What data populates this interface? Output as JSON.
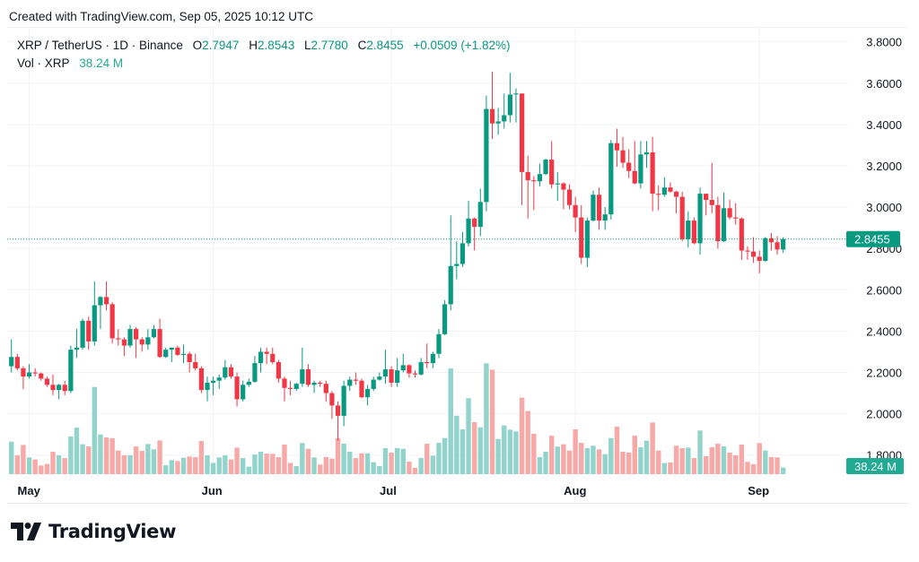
{
  "header": {
    "created": "Created with TradingView.com, Sep 05, 2025 10:12 UTC"
  },
  "legend": {
    "symbol": "XRP / TetherUS · 1D · Binance",
    "open_label": "O",
    "open": "2.7947",
    "high_label": "H",
    "high": "2.8543",
    "low_label": "L",
    "low": "2.7780",
    "close_label": "C",
    "close": "2.8455",
    "change": "+0.0509 (+1.82%)",
    "volume_label": "Vol · XRP",
    "volume": "38.24 M"
  },
  "price_tag": "2.8455",
  "volume_tag": "38.24 M",
  "logo": {
    "text": "TradingView"
  },
  "colors": {
    "up": "#089981",
    "down": "#f23645",
    "volume_up": "#92d3cc",
    "volume_down": "#f7a9a7",
    "grid": "#f2f3f6",
    "price_line": "#089981"
  },
  "chart_data": {
    "type": "candlestick",
    "title": "",
    "y_axis": {
      "ticks": [
        "3.8000",
        "3.6000",
        "3.4000",
        "3.2000",
        "3.0000",
        "2.8000",
        "2.6000",
        "2.4000",
        "2.2000",
        "2.0000",
        "1.8000"
      ],
      "range": [
        1.78,
        3.87
      ],
      "position": "right"
    },
    "x_axis": {
      "ticks": [
        {
          "label": "May",
          "date": "2025-05-01"
        },
        {
          "label": "Jun",
          "date": "2025-06-01"
        },
        {
          "label": "Jul",
          "date": "2025-07-01"
        },
        {
          "label": "Aug",
          "date": "2025-08-01"
        },
        {
          "label": "Sep",
          "date": "2025-09-01"
        }
      ]
    },
    "grid": true,
    "last_price": 2.8455,
    "volume_unit": "M",
    "columns": [
      "date",
      "open",
      "high",
      "low",
      "close",
      "volume"
    ],
    "candles": [
      [
        "2025-04-28",
        2.23,
        2.36,
        2.2,
        2.275,
        190
      ],
      [
        "2025-04-29",
        2.275,
        2.29,
        2.21,
        2.22,
        110
      ],
      [
        "2025-04-30",
        2.22,
        2.23,
        2.12,
        2.18,
        171
      ],
      [
        "2025-05-01",
        2.18,
        2.24,
        2.17,
        2.2,
        98
      ],
      [
        "2025-05-02",
        2.2,
        2.22,
        2.18,
        2.195,
        86
      ],
      [
        "2025-05-03",
        2.195,
        2.2,
        2.16,
        2.17,
        51
      ],
      [
        "2025-05-04",
        2.17,
        2.18,
        2.13,
        2.14,
        59
      ],
      [
        "2025-05-05",
        2.14,
        2.19,
        2.09,
        2.115,
        131
      ],
      [
        "2025-05-06",
        2.115,
        2.145,
        2.07,
        2.14,
        110
      ],
      [
        "2025-05-07",
        2.14,
        2.16,
        2.09,
        2.11,
        94
      ],
      [
        "2025-05-08",
        2.11,
        2.33,
        2.1,
        2.31,
        220
      ],
      [
        "2025-05-09",
        2.31,
        2.41,
        2.27,
        2.32,
        272
      ],
      [
        "2025-05-10",
        2.32,
        2.46,
        2.31,
        2.45,
        175
      ],
      [
        "2025-05-11",
        2.45,
        2.47,
        2.31,
        2.35,
        162
      ],
      [
        "2025-05-12",
        2.35,
        2.64,
        2.33,
        2.525,
        510
      ],
      [
        "2025-05-13",
        2.525,
        2.57,
        2.41,
        2.565,
        232
      ],
      [
        "2025-05-14",
        2.565,
        2.64,
        2.5,
        2.53,
        215
      ],
      [
        "2025-05-15",
        2.53,
        2.54,
        2.34,
        2.365,
        210
      ],
      [
        "2025-05-16",
        2.365,
        2.41,
        2.33,
        2.36,
        138
      ],
      [
        "2025-05-17",
        2.36,
        2.37,
        2.28,
        2.33,
        110
      ],
      [
        "2025-05-18",
        2.33,
        2.43,
        2.32,
        2.41,
        110
      ],
      [
        "2025-05-19",
        2.41,
        2.42,
        2.27,
        2.36,
        162
      ],
      [
        "2025-05-20",
        2.36,
        2.37,
        2.3,
        2.335,
        136
      ],
      [
        "2025-05-21",
        2.335,
        2.41,
        2.31,
        2.37,
        176
      ],
      [
        "2025-05-22",
        2.37,
        2.43,
        2.365,
        2.41,
        145
      ],
      [
        "2025-05-23",
        2.41,
        2.46,
        2.27,
        2.275,
        197
      ],
      [
        "2025-05-24",
        2.275,
        2.32,
        2.27,
        2.31,
        52
      ],
      [
        "2025-05-25",
        2.31,
        2.32,
        2.25,
        2.32,
        82
      ],
      [
        "2025-05-26",
        2.32,
        2.33,
        2.28,
        2.285,
        77
      ],
      [
        "2025-05-27",
        2.285,
        2.335,
        2.245,
        2.29,
        96
      ],
      [
        "2025-05-28",
        2.29,
        2.3,
        2.2,
        2.25,
        103
      ],
      [
        "2025-05-29",
        2.25,
        2.29,
        2.21,
        2.22,
        100
      ],
      [
        "2025-05-30",
        2.22,
        2.23,
        2.1,
        2.115,
        194
      ],
      [
        "2025-05-31",
        2.115,
        2.18,
        2.06,
        2.15,
        110
      ],
      [
        "2025-06-01",
        2.15,
        2.18,
        2.09,
        2.16,
        66
      ],
      [
        "2025-06-02",
        2.16,
        2.19,
        2.12,
        2.175,
        98
      ],
      [
        "2025-06-03",
        2.175,
        2.26,
        2.165,
        2.225,
        110
      ],
      [
        "2025-06-04",
        2.225,
        2.24,
        2.17,
        2.18,
        86
      ],
      [
        "2025-06-05",
        2.18,
        2.2,
        2.035,
        2.07,
        155
      ],
      [
        "2025-06-06",
        2.07,
        2.16,
        2.06,
        2.14,
        94
      ],
      [
        "2025-06-07",
        2.14,
        2.17,
        2.13,
        2.155,
        44
      ],
      [
        "2025-06-08",
        2.155,
        2.28,
        2.15,
        2.245,
        115
      ],
      [
        "2025-06-09",
        2.245,
        2.32,
        2.2,
        2.3,
        131
      ],
      [
        "2025-06-10",
        2.3,
        2.32,
        2.24,
        2.29,
        120
      ],
      [
        "2025-06-11",
        2.29,
        2.32,
        2.24,
        2.25,
        119
      ],
      [
        "2025-06-12",
        2.25,
        2.26,
        2.15,
        2.17,
        100
      ],
      [
        "2025-06-13",
        2.17,
        2.18,
        2.06,
        2.125,
        173
      ],
      [
        "2025-06-14",
        2.125,
        2.16,
        2.09,
        2.12,
        66
      ],
      [
        "2025-06-15",
        2.12,
        2.15,
        2.11,
        2.145,
        47
      ],
      [
        "2025-06-16",
        2.145,
        2.32,
        2.13,
        2.215,
        182
      ],
      [
        "2025-06-17",
        2.215,
        2.24,
        2.13,
        2.14,
        148
      ],
      [
        "2025-06-18",
        2.14,
        2.16,
        2.1,
        2.15,
        98
      ],
      [
        "2025-06-19",
        2.15,
        2.16,
        2.13,
        2.145,
        56
      ],
      [
        "2025-06-20",
        2.145,
        2.16,
        2.06,
        2.1,
        100
      ],
      [
        "2025-06-21",
        2.1,
        2.11,
        1.975,
        2.04,
        91
      ],
      [
        "2025-06-22",
        2.04,
        2.06,
        1.87,
        1.99,
        210
      ],
      [
        "2025-06-23",
        1.99,
        2.16,
        1.94,
        2.135,
        178
      ],
      [
        "2025-06-24",
        2.135,
        2.18,
        2.11,
        2.165,
        131
      ],
      [
        "2025-06-25",
        2.165,
        2.2,
        2.14,
        2.16,
        94
      ],
      [
        "2025-06-26",
        2.16,
        2.17,
        2.075,
        2.08,
        122
      ],
      [
        "2025-06-27",
        2.08,
        2.14,
        2.04,
        2.12,
        122
      ],
      [
        "2025-06-28",
        2.12,
        2.18,
        2.11,
        2.165,
        70
      ],
      [
        "2025-06-29",
        2.165,
        2.2,
        2.16,
        2.18,
        47
      ],
      [
        "2025-06-30",
        2.18,
        2.31,
        2.145,
        2.215,
        152
      ],
      [
        "2025-07-01",
        2.215,
        2.23,
        2.13,
        2.15,
        126
      ],
      [
        "2025-07-02",
        2.15,
        2.27,
        2.13,
        2.21,
        152
      ],
      [
        "2025-07-03",
        2.21,
        2.29,
        2.2,
        2.235,
        148
      ],
      [
        "2025-07-04",
        2.235,
        2.24,
        2.175,
        2.195,
        73
      ],
      [
        "2025-07-05",
        2.195,
        2.21,
        2.175,
        2.19,
        37
      ],
      [
        "2025-07-06",
        2.19,
        2.27,
        2.185,
        2.25,
        94
      ],
      [
        "2025-07-07",
        2.25,
        2.34,
        2.22,
        2.245,
        178
      ],
      [
        "2025-07-08",
        2.245,
        2.3,
        2.22,
        2.29,
        108
      ],
      [
        "2025-07-09",
        2.29,
        2.41,
        2.27,
        2.385,
        183
      ],
      [
        "2025-07-10",
        2.385,
        2.55,
        2.38,
        2.53,
        211
      ],
      [
        "2025-07-11",
        2.53,
        2.96,
        2.5,
        2.715,
        618
      ],
      [
        "2025-07-12",
        2.715,
        2.835,
        2.65,
        2.725,
        342
      ],
      [
        "2025-07-13",
        2.725,
        2.88,
        2.71,
        2.825,
        262
      ],
      [
        "2025-07-14",
        2.825,
        3.03,
        2.81,
        2.945,
        444
      ],
      [
        "2025-07-15",
        2.945,
        2.95,
        2.79,
        2.905,
        304
      ],
      [
        "2025-07-16",
        2.905,
        3.09,
        2.86,
        3.025,
        274
      ],
      [
        "2025-07-17",
        3.025,
        3.54,
        2.98,
        3.475,
        648
      ],
      [
        "2025-07-18",
        3.475,
        3.655,
        3.33,
        3.405,
        611
      ],
      [
        "2025-07-19",
        3.405,
        3.48,
        3.35,
        3.415,
        206
      ],
      [
        "2025-07-20",
        3.415,
        3.55,
        3.38,
        3.445,
        285
      ],
      [
        "2025-07-21",
        3.445,
        3.65,
        3.41,
        3.545,
        260
      ],
      [
        "2025-07-22",
        3.545,
        3.575,
        3.41,
        3.55,
        250
      ],
      [
        "2025-07-23",
        3.55,
        3.55,
        3.01,
        3.17,
        447
      ],
      [
        "2025-07-24",
        3.17,
        3.25,
        2.945,
        3.13,
        369
      ],
      [
        "2025-07-25",
        3.13,
        3.15,
        2.985,
        3.125,
        236
      ],
      [
        "2025-07-26",
        3.125,
        3.21,
        3.1,
        3.16,
        100
      ],
      [
        "2025-07-27",
        3.16,
        3.235,
        3.155,
        3.23,
        131
      ],
      [
        "2025-07-28",
        3.23,
        3.32,
        3.09,
        3.11,
        225
      ],
      [
        "2025-07-29",
        3.11,
        3.17,
        3.03,
        3.115,
        161
      ],
      [
        "2025-07-30",
        3.115,
        3.12,
        2.99,
        3.085,
        175
      ],
      [
        "2025-07-31",
        3.085,
        3.11,
        2.99,
        3.01,
        138
      ],
      [
        "2025-08-01",
        3.01,
        3.05,
        2.88,
        2.95,
        262
      ],
      [
        "2025-08-02",
        2.95,
        3.01,
        2.725,
        2.755,
        183
      ],
      [
        "2025-08-03",
        2.755,
        2.95,
        2.71,
        2.935,
        152
      ],
      [
        "2025-08-04",
        2.935,
        3.08,
        2.93,
        3.06,
        166
      ],
      [
        "2025-08-05",
        3.06,
        3.095,
        2.89,
        2.935,
        145
      ],
      [
        "2025-08-06",
        2.935,
        3.0,
        2.89,
        2.965,
        117
      ],
      [
        "2025-08-07",
        2.965,
        3.325,
        2.94,
        3.31,
        211
      ],
      [
        "2025-08-08",
        3.31,
        3.38,
        3.195,
        3.275,
        278
      ],
      [
        "2025-08-09",
        3.275,
        3.34,
        3.19,
        3.215,
        131
      ],
      [
        "2025-08-10",
        3.215,
        3.28,
        3.14,
        3.175,
        126
      ],
      [
        "2025-08-11",
        3.175,
        3.32,
        3.11,
        3.115,
        225
      ],
      [
        "2025-08-12",
        3.115,
        3.32,
        3.09,
        3.255,
        157
      ],
      [
        "2025-08-13",
        3.255,
        3.32,
        3.19,
        3.265,
        196
      ],
      [
        "2025-08-14",
        3.265,
        3.34,
        2.98,
        3.065,
        302
      ],
      [
        "2025-08-15",
        3.065,
        3.105,
        2.985,
        3.06,
        138
      ],
      [
        "2025-08-16",
        3.06,
        3.145,
        3.05,
        3.095,
        65
      ],
      [
        "2025-08-17",
        3.095,
        3.12,
        3.07,
        3.075,
        68
      ],
      [
        "2025-08-18",
        3.075,
        3.08,
        2.97,
        3.05,
        166
      ],
      [
        "2025-08-19",
        3.05,
        3.075,
        2.835,
        2.845,
        152
      ],
      [
        "2025-08-20",
        2.845,
        2.98,
        2.805,
        2.935,
        155
      ],
      [
        "2025-08-21",
        2.935,
        2.95,
        2.82,
        2.825,
        94
      ],
      [
        "2025-08-22",
        2.825,
        3.095,
        2.77,
        3.065,
        255
      ],
      [
        "2025-08-23",
        3.065,
        3.065,
        2.96,
        3.035,
        105
      ],
      [
        "2025-08-24",
        3.035,
        3.215,
        2.97,
        3.01,
        157
      ],
      [
        "2025-08-25",
        3.01,
        3.05,
        2.8,
        2.835,
        178
      ],
      [
        "2025-08-26",
        2.835,
        3.07,
        2.83,
        2.995,
        162
      ],
      [
        "2025-08-27",
        2.995,
        3.035,
        2.94,
        2.95,
        126
      ],
      [
        "2025-08-28",
        2.95,
        3.02,
        2.915,
        2.945,
        110
      ],
      [
        "2025-08-29",
        2.945,
        2.95,
        2.745,
        2.79,
        173
      ],
      [
        "2025-08-30",
        2.79,
        2.81,
        2.745,
        2.785,
        72
      ],
      [
        "2025-08-31",
        2.785,
        2.855,
        2.73,
        2.76,
        58
      ],
      [
        "2025-09-01",
        2.76,
        2.79,
        2.68,
        2.74,
        182
      ],
      [
        "2025-09-02",
        2.74,
        2.855,
        2.735,
        2.85,
        138
      ],
      [
        "2025-09-03",
        2.85,
        2.875,
        2.79,
        2.83,
        100
      ],
      [
        "2025-09-04",
        2.83,
        2.86,
        2.77,
        2.7947,
        98
      ],
      [
        "2025-09-05",
        2.7947,
        2.8543,
        2.778,
        2.8455,
        38.24
      ]
    ]
  }
}
